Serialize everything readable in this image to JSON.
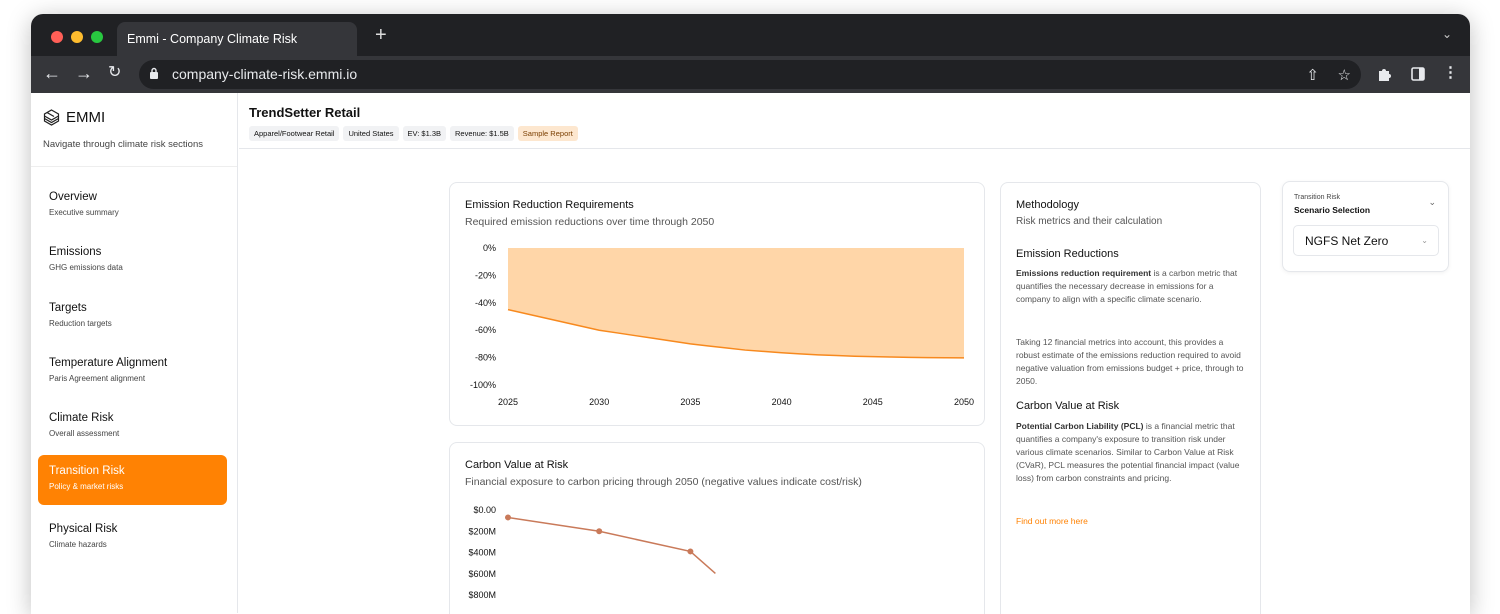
{
  "browser": {
    "tab_title": "Emmi - Company Climate Risk",
    "url": "company-climate-risk.emmi.io"
  },
  "sidebar": {
    "brand": "EMMI",
    "subtitle": "Navigate through climate risk sections",
    "items": [
      {
        "title": "Overview",
        "subtitle": "Executive summary",
        "active": false
      },
      {
        "title": "Emissions",
        "subtitle": "GHG emissions data",
        "active": false
      },
      {
        "title": "Targets",
        "subtitle": "Reduction targets",
        "active": false
      },
      {
        "title": "Temperature Alignment",
        "subtitle": "Paris Agreement alignment",
        "active": false
      },
      {
        "title": "Climate Risk",
        "subtitle": "Overall assessment",
        "active": false
      },
      {
        "title": "Transition Risk",
        "subtitle": "Policy & market risks",
        "active": true
      },
      {
        "title": "Physical Risk",
        "subtitle": "Climate hazards",
        "active": false
      }
    ]
  },
  "header": {
    "company": "TrendSetter Retail",
    "tags": [
      "Apparel/Footwear Retail",
      "United States",
      "EV: $1.3B",
      "Revenue: $1.5B"
    ],
    "sample_tag": "Sample Report"
  },
  "emission_card": {
    "title": "Emission Reduction Requirements",
    "subtitle": "Required emission reductions over time through 2050"
  },
  "cvar_card": {
    "title": "Carbon Value at Risk",
    "subtitle": "Financial exposure to carbon pricing through 2050 (negative values indicate cost/risk)"
  },
  "methodology": {
    "title": "Methodology",
    "subtitle": "Risk metrics and their calculation",
    "emission_heading": "Emission Reductions",
    "emission_p1_bold": "Emissions reduction requirement",
    "emission_p1_rest": " is a carbon metric that quantifies the necessary decrease in emissions for a company to align with a specific climate scenario.",
    "emission_p2": "Taking 12 financial metrics into account, this provides a robust estimate of the emissions reduction required to avoid negative valuation from emissions budget + price, through to 2050.",
    "cvar_heading": "Carbon Value at Risk",
    "cvar_p_bold": "Potential Carbon Liability (PCL)",
    "cvar_p_rest": " is a financial metric that quantifies a company's exposure to transition risk under various climate scenarios. Similar to Carbon Value at Risk (CVaR), PCL measures the potential financial impact (value loss) from carbon constraints and pricing.",
    "link": "Find out more here"
  },
  "scenario": {
    "label": "Transition Risk",
    "title": "Scenario Selection",
    "selected": "NGFS Net Zero"
  },
  "chart_data": [
    {
      "type": "area",
      "x": [
        2025,
        2026,
        2027,
        2028,
        2029,
        2030,
        2031,
        2032,
        2033,
        2034,
        2035,
        2036,
        2037,
        2038,
        2039,
        2040,
        2041,
        2042,
        2043,
        2044,
        2045,
        2046,
        2047,
        2048,
        2049,
        2050
      ],
      "series": [
        {
          "values": [
            -45,
            -48,
            -51,
            -54,
            -57,
            -60,
            -62,
            -64,
            -66,
            -68,
            -70,
            -71.5,
            -73,
            -74.5,
            -75.5,
            -76.5,
            -77.3,
            -78,
            -78.5,
            -79,
            -79.3,
            -79.6,
            -79.8,
            -80,
            -80.1,
            -80.2
          ]
        }
      ],
      "y_ticks": [
        "0%",
        "-20%",
        "-40%",
        "-60%",
        "-80%",
        "-100%"
      ],
      "x_ticks": [
        "2025",
        "2030",
        "2035",
        "2040",
        "2045",
        "2050"
      ],
      "ylim": [
        -100,
        0
      ],
      "colors": {
        "fill": "#ffd6a8",
        "line": "#f7891e"
      }
    },
    {
      "type": "line",
      "x": [
        2025,
        2030,
        2035
      ],
      "series": [
        {
          "values": [
            -70,
            -200,
            -390
          ]
        }
      ],
      "y_ticks": [
        "$0.00",
        "$200M",
        "$400M",
        "$600M",
        "$800M"
      ],
      "ylim": [
        -800,
        0
      ],
      "colors": {
        "line": "#c97a5a"
      }
    }
  ]
}
